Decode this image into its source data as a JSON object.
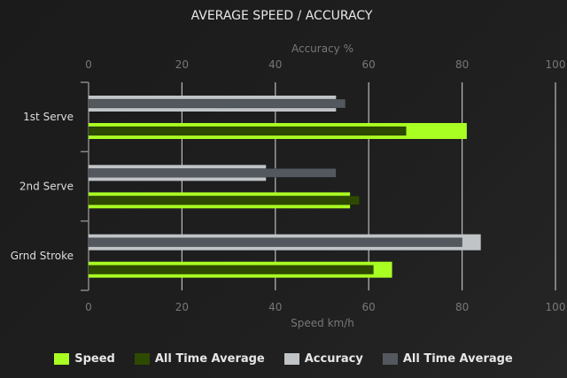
{
  "chart_data": {
    "type": "bar",
    "orientation": "horizontal",
    "title": "AVERAGE SPEED / ACCURACY",
    "categories": [
      "1st Serve",
      "2nd Serve",
      "Grnd Stroke"
    ],
    "top_axis": {
      "label": "Accuracy %",
      "range": [
        0,
        100
      ],
      "ticks": [
        "0",
        "20",
        "40",
        "60",
        "80",
        "100"
      ]
    },
    "bottom_axis": {
      "label": "Speed km/h",
      "range": [
        0,
        100
      ],
      "ticks": [
        "0",
        "20",
        "40",
        "60",
        "80",
        "100"
      ]
    },
    "grid": true,
    "legend_position": "bottom",
    "series": [
      {
        "name": "Speed",
        "axis": "bottom",
        "color": "#aaff22",
        "values": [
          81,
          56,
          65
        ]
      },
      {
        "name": "All Time Average",
        "axis": "bottom",
        "color": "#2e4a00",
        "values": [
          68,
          58,
          61
        ]
      },
      {
        "name": "Accuracy",
        "axis": "top",
        "color": "#c0c4c6",
        "values": [
          53,
          38,
          84
        ]
      },
      {
        "name": "All Time Average",
        "axis": "top",
        "color": "#53585e",
        "values": [
          55,
          53,
          80
        ]
      }
    ]
  }
}
